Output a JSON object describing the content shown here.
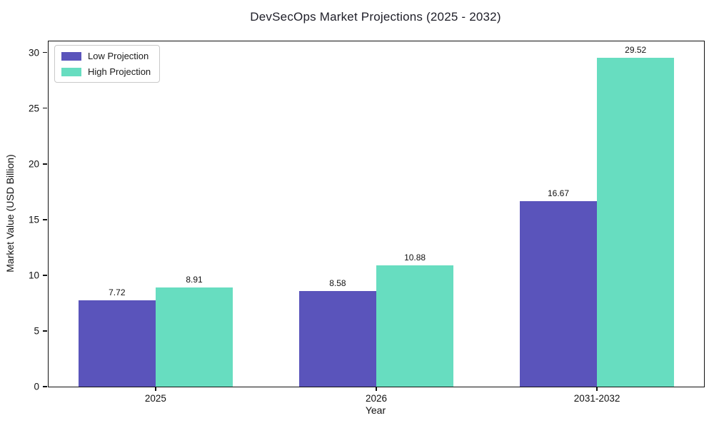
{
  "chart_data": {
    "type": "bar",
    "title": "DevSecOps Market Projections (2025 - 2032)",
    "xlabel": "Year",
    "ylabel": "Market Value (USD Billion)",
    "categories": [
      "2025",
      "2026",
      "2031-2032"
    ],
    "series": [
      {
        "name": "Low Projection",
        "color": "#5A54BB",
        "values": [
          7.72,
          8.58,
          16.67
        ]
      },
      {
        "name": "High Projection",
        "color": "#67DDC0",
        "values": [
          8.91,
          10.88,
          29.52
        ]
      }
    ],
    "ylim": [
      0,
      31
    ],
    "yticks": [
      0,
      5,
      10,
      15,
      20,
      25,
      30
    ],
    "xlim": [
      -0.485,
      2.485
    ],
    "bar_width": 0.35,
    "value_label_decimals": 2,
    "legend_position": "upper left",
    "grid": false,
    "frame_color": "#111111",
    "background": "#ffffff"
  }
}
